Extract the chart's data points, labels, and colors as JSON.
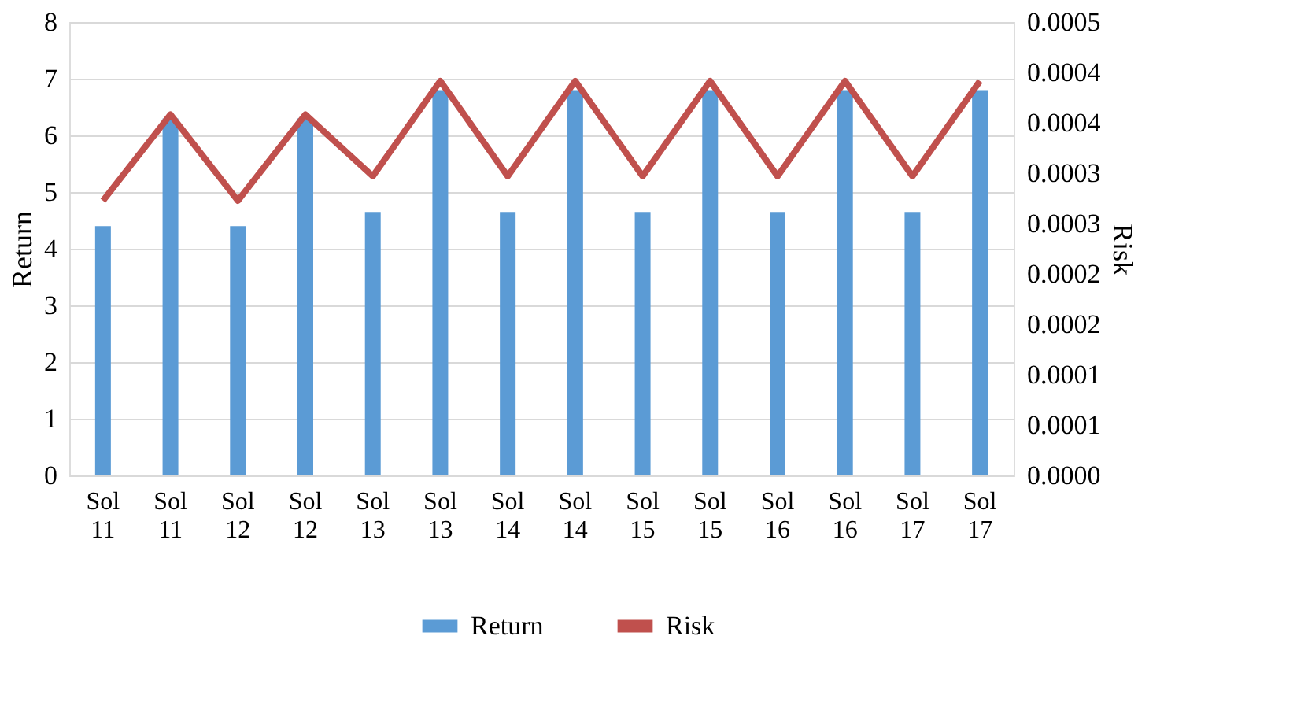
{
  "chart_data": {
    "type": "bar",
    "ylabel": "Return",
    "y2label": "Risk",
    "categories": [
      "Sol 11",
      "Sol 11",
      "Sol 12",
      "Sol 12",
      "Sol 13",
      "Sol 13",
      "Sol 14",
      "Sol 14",
      "Sol 15",
      "Sol 15",
      "Sol 16",
      "Sol 16",
      "Sol 17",
      "Sol 17"
    ],
    "series": [
      {
        "name": "Return",
        "color": "#5b9bd5",
        "values": [
          4.4,
          6.3,
          4.4,
          6.3,
          4.65,
          6.8,
          4.65,
          6.8,
          4.65,
          6.8,
          4.65,
          6.8,
          4.65,
          6.8
        ]
      },
      {
        "name": "Risk",
        "type": "line",
        "axis": "y2",
        "color": "#c0504d",
        "values": [
          0.000303,
          0.000398,
          0.000303,
          0.000398,
          0.00033,
          0.000435,
          0.00033,
          0.000435,
          0.00033,
          0.000435,
          0.00033,
          0.000435,
          0.00033,
          0.000435
        ]
      }
    ],
    "ylim": [
      0,
      8
    ],
    "yticks": [
      0,
      1,
      2,
      3,
      4,
      5,
      6,
      7,
      8
    ],
    "y2lim": [
      0,
      0.0005
    ],
    "y2ticks": [
      {
        "value": 0,
        "label": "0.0000"
      },
      {
        "value": 5.56e-05,
        "label": "0.0001"
      },
      {
        "value": 0.0001111,
        "label": "0.0001"
      },
      {
        "value": 0.0001667,
        "label": "0.0002"
      },
      {
        "value": 0.0002222,
        "label": "0.0002"
      },
      {
        "value": 0.0002778,
        "label": "0.0003"
      },
      {
        "value": 0.0003333,
        "label": "0.0003"
      },
      {
        "value": 0.0003889,
        "label": "0.0004"
      },
      {
        "value": 0.0004444,
        "label": "0.0004"
      },
      {
        "value": 0.0005,
        "label": "0.0005"
      }
    ],
    "grid": "y",
    "legend": "bottom",
    "marker": "none",
    "line_style": "solid"
  }
}
